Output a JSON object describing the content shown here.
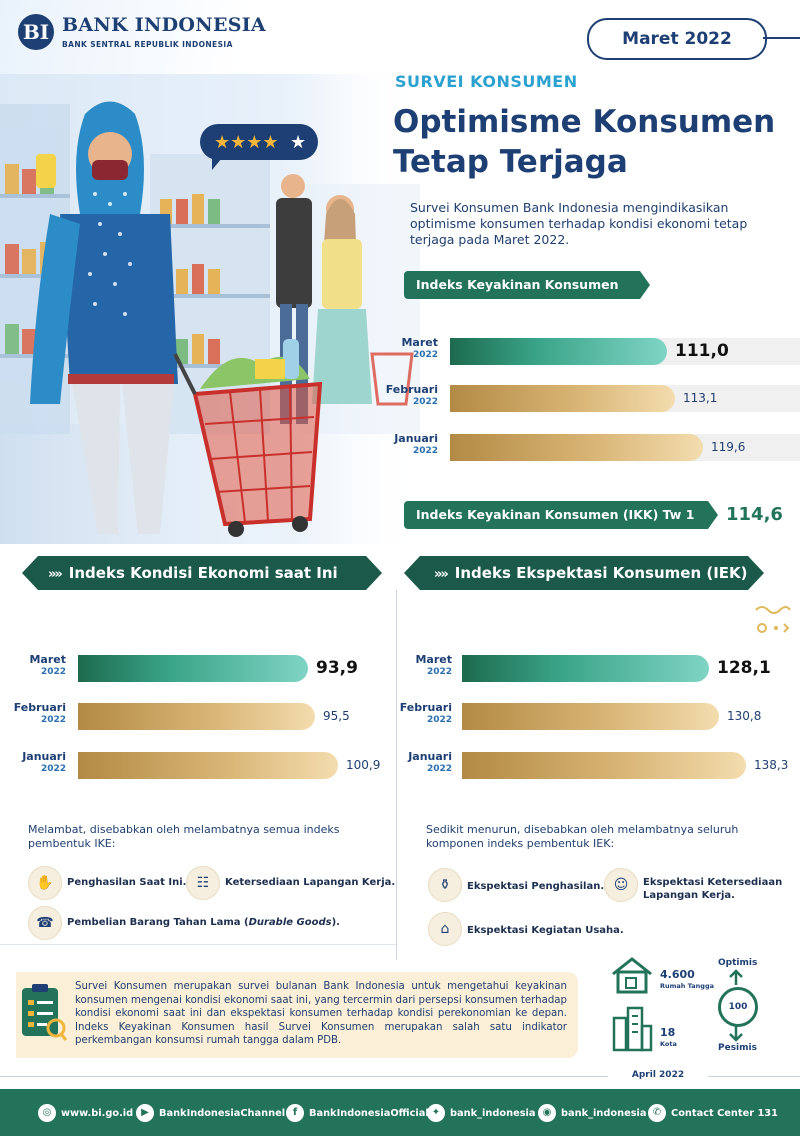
{
  "header": {
    "brand_mark": "BI",
    "brand_name": "BANK INDONESIA",
    "brand_sub": "BANK SENTRAL REPUBLIK INDONESIA",
    "period": "Maret 2022"
  },
  "hero": {
    "section": "SURVEI KONSUMEN",
    "title_line1": "Optimisme Konsumen",
    "title_line2": "Tetap Terjaga",
    "intro": "Survei Konsumen Bank Indonesia mengindikasikan optimisme konsumen terhadap kondisi ekonomi tetap terjaga pada Maret 2022."
  },
  "ikk": {
    "title": "Indeks Keyakinan Konsumen (IKK)",
    "rows": [
      {
        "month": "Maret",
        "year": "2022",
        "value": 111.0,
        "label": "111,0"
      },
      {
        "month": "Februari",
        "year": "2022",
        "value": 113.1,
        "label": "113,1"
      },
      {
        "month": "Januari",
        "year": "2022",
        "value": 119.6,
        "label": "119,6"
      }
    ],
    "tw_title": "Indeks Keyakinan Konsumen (IKK) Tw 1 2022",
    "tw_value": "114,6"
  },
  "ike": {
    "title": "Indeks Kondisi Ekonomi saat Ini (IKE)",
    "chev": "»»",
    "rows": [
      {
        "month": "Maret",
        "year": "2022",
        "value": 93.9,
        "label": "93,9"
      },
      {
        "month": "Februari",
        "year": "2022",
        "value": 95.5,
        "label": "95,5"
      },
      {
        "month": "Januari",
        "year": "2022",
        "value": 100.9,
        "label": "100,9"
      }
    ],
    "note": "Melambat, disebabkan oleh melambatnya semua indeks pembentuk IKE:",
    "components": {
      "c1": "Penghasilan Saat Ini.",
      "c2": "Ketersediaan Lapangan Kerja.",
      "c3_a": "Pembelian Barang Tahan Lama (",
      "c3_b": "Durable Goods",
      "c3_c": ")."
    }
  },
  "iek": {
    "title": "Indeks Ekspektasi Konsumen (IEK)",
    "chev": "»»",
    "rows": [
      {
        "month": "Maret",
        "year": "2022",
        "value": 128.1,
        "label": "128,1"
      },
      {
        "month": "Februari",
        "year": "2022",
        "value": 130.8,
        "label": "130,8"
      },
      {
        "month": "Januari",
        "year": "2022",
        "value": 138.3,
        "label": "138,3"
      }
    ],
    "note": "Sedikit menurun, disebabkan oleh melambatnya  seluruh komponen indeks pembentuk IEK:",
    "components": {
      "c1": "Ekspektasi Penghasilan.",
      "c2a": "Ekspektasi Ketersediaan",
      "c2b": "Lapangan Kerja.",
      "c3": "Ekspektasi Kegiatan Usaha."
    }
  },
  "info": {
    "text": "Survei Konsumen merupakan survei bulanan Bank Indonesia untuk mengetahui keyakinan konsumen mengenai kondisi ekonomi saat ini, yang tercermin dari persepsi konsumen terhadap kondisi ekonomi saat ini dan ekspektasi konsumen terhadap kondisi perekonomian ke depan. Indeks Keyakinan Konsumen hasil Survei Konsumen merupakan salah satu indikator perkembangan konsumsi rumah tangga dalam PDB.",
    "households_num": "4.600",
    "households_label": "Rumah Tangga",
    "cities_num": "18",
    "cities_label": "Kota",
    "gauge_top": "Optimis",
    "gauge_mid": "100",
    "gauge_bottom": "Pesimis"
  },
  "release": "April 2022",
  "footer": {
    "web": "www.bi.go.id",
    "youtube": "BankIndonesiaChannel",
    "facebook": "BankIndonesiaOfficial",
    "twitter": "bank_indonesia",
    "instagram": "bank_indonesia",
    "contact": "Contact Center 131"
  },
  "chart_data": [
    {
      "type": "bar",
      "title": "Indeks Keyakinan Konsumen (IKK)",
      "categories": [
        "Maret 2022",
        "Februari 2022",
        "Januari 2022"
      ],
      "values": [
        111.0,
        113.1,
        119.6
      ]
    },
    {
      "type": "bar",
      "title": "Indeks Kondisi Ekonomi saat Ini (IKE)",
      "categories": [
        "Maret 2022",
        "Februari 2022",
        "Januari 2022"
      ],
      "values": [
        93.9,
        95.5,
        100.9
      ]
    },
    {
      "type": "bar",
      "title": "Indeks Ekspektasi Konsumen (IEK)",
      "categories": [
        "Maret 2022",
        "Februari 2022",
        "Januari 2022"
      ],
      "values": [
        128.1,
        130.8,
        138.3
      ]
    }
  ],
  "colors": {
    "green": "#23735a",
    "navy": "#1d3f74",
    "gold": "#d8b474",
    "cyan": "#2aa1cf"
  }
}
